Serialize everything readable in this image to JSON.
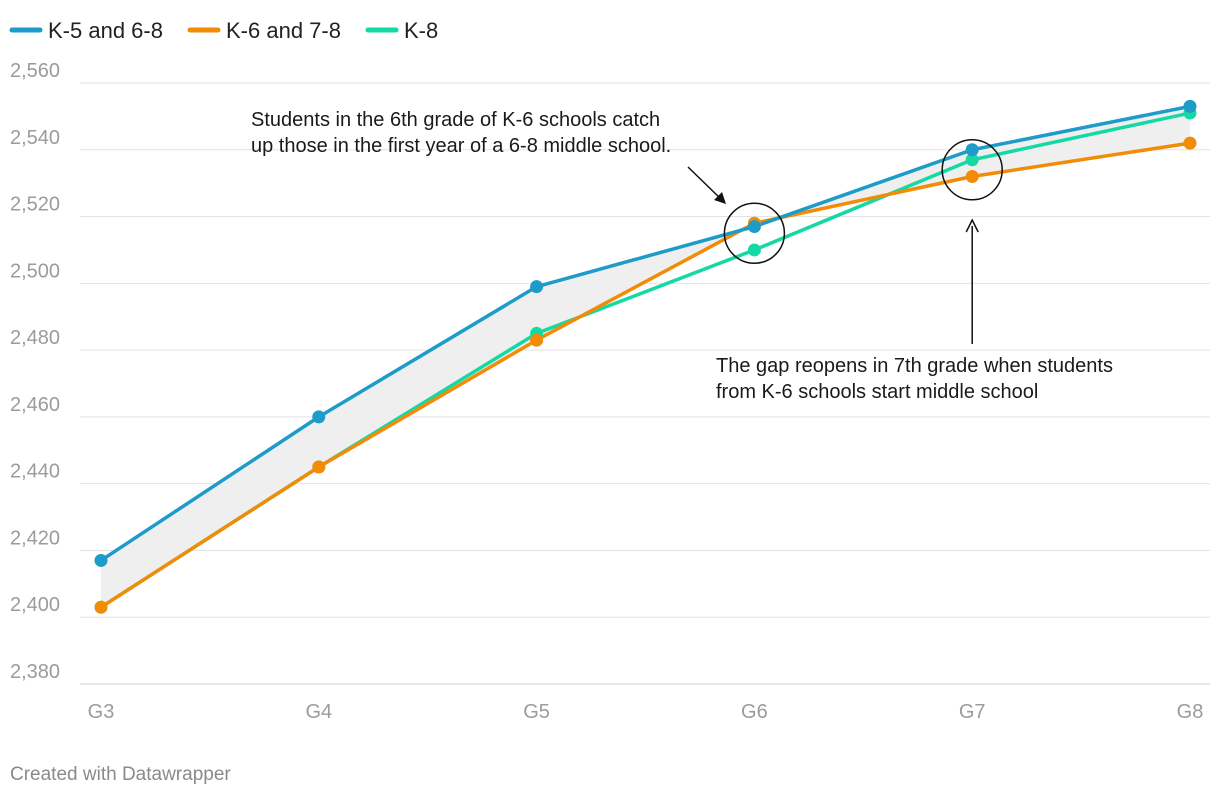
{
  "chart_data": {
    "type": "line",
    "categories": [
      "G3",
      "G4",
      "G5",
      "G6",
      "G7",
      "G8"
    ],
    "series": [
      {
        "name": "K-5 and 6-8",
        "color": "#1d9bc9",
        "values": [
          2417,
          2460,
          2499,
          2517,
          2540,
          2553
        ]
      },
      {
        "name": "K-6 and 7-8",
        "color": "#f28c07",
        "values": [
          2403,
          2445,
          2483,
          2518,
          2532,
          2542
        ]
      },
      {
        "name": "K-8",
        "color": "#14d9a4",
        "values": [
          2403,
          2445,
          2485,
          2510,
          2537,
          2551
        ]
      }
    ],
    "range_shading": {
      "color": "#efefef",
      "between": [
        "K-5 and 6-8",
        "K-6 and 7-8"
      ]
    },
    "ylim": [
      2380,
      2560
    ],
    "yticks": [
      2380,
      2400,
      2420,
      2440,
      2460,
      2480,
      2500,
      2520,
      2540,
      2560
    ],
    "ytick_labels": [
      "2,380",
      "2,400",
      "2,420",
      "2,440",
      "2,460",
      "2,480",
      "2,500",
      "2,520",
      "2,540",
      "2,560"
    ],
    "grid": true,
    "legend_position": "top-left",
    "annotations": [
      {
        "lines": [
          "Students in the 6th grade of K-6 schools catch",
          "up those in the first year of a 6-8 middle school."
        ],
        "category": "G6",
        "value": 2515
      },
      {
        "lines": [
          "The gap reopens in 7th grade when students",
          "from K-6 schools start middle school"
        ],
        "category": "G7",
        "value": 2534
      }
    ]
  },
  "credit": "Created with Datawrapper"
}
